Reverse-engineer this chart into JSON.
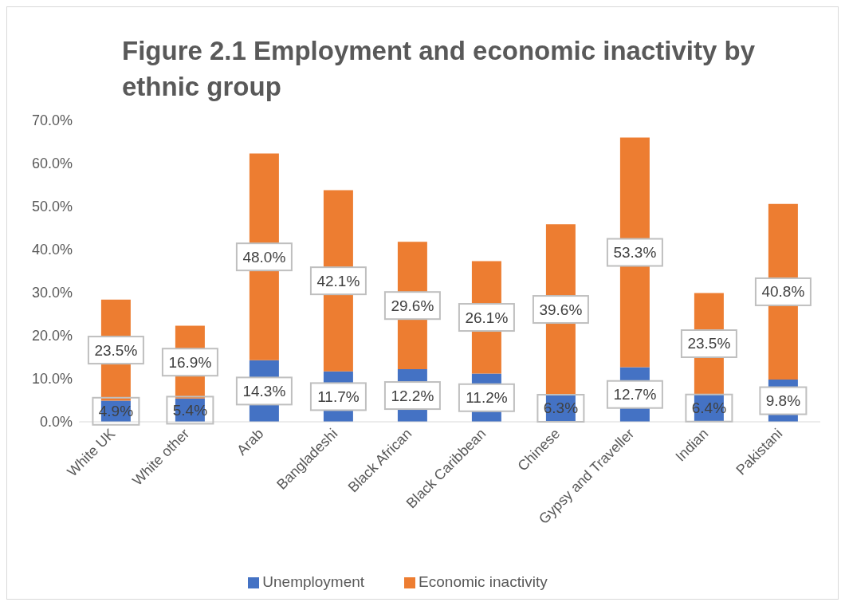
{
  "chart_data": {
    "type": "bar",
    "title": "Figure 2.1 Employment and economic inactivity by ethnic group",
    "categories": [
      "White UK",
      "White other",
      "Arab",
      "Bangladeshi",
      "Black African",
      "Black Caribbean",
      "Chinese",
      "Gypsy and Traveller",
      "Indian",
      "Pakistani"
    ],
    "stacked": true,
    "series": [
      {
        "name": "Unemployment",
        "color": "#4472c4",
        "values": [
          4.9,
          5.4,
          14.3,
          11.7,
          12.2,
          11.2,
          6.3,
          12.7,
          6.4,
          9.8
        ],
        "value_labels": [
          "4.9%",
          "5.4%",
          "14.3%",
          "11.7%",
          "12.2%",
          "11.2%",
          "6.3%",
          "12.7%",
          "6.4%",
          "9.8%"
        ]
      },
      {
        "name": "Economic inactivity",
        "color": "#ed7d31",
        "values": [
          23.5,
          16.9,
          48.0,
          42.1,
          29.6,
          26.1,
          39.6,
          53.3,
          23.5,
          40.8
        ],
        "value_labels": [
          "23.5%",
          "16.9%",
          "48.0%",
          "42.1%",
          "29.6%",
          "26.1%",
          "39.6%",
          "53.3%",
          "23.5%",
          "40.8%"
        ]
      }
    ],
    "ylim": [
      0,
      70
    ],
    "yticks": [
      {
        "value": 0,
        "label": "0.0%"
      },
      {
        "value": 10,
        "label": "10.0%"
      },
      {
        "value": 20,
        "label": "20.0%"
      },
      {
        "value": 30,
        "label": "30.0%"
      },
      {
        "value": 40,
        "label": "40.0%"
      },
      {
        "value": 50,
        "label": "50.0%"
      },
      {
        "value": 60,
        "label": "60.0%"
      },
      {
        "value": 70,
        "label": "70.0%"
      }
    ],
    "legend": "bottom"
  }
}
